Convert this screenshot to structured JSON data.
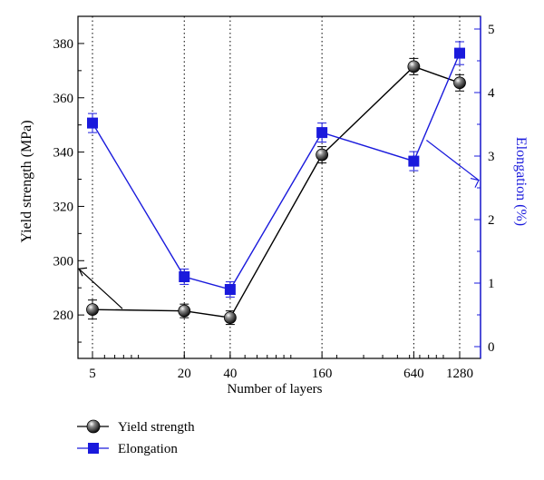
{
  "chart_data": {
    "type": "line",
    "x_scale": "log",
    "categories": [
      "5",
      "20",
      "40",
      "160",
      "640",
      "1280"
    ],
    "x": [
      5,
      20,
      40,
      160,
      640,
      1280
    ],
    "xlabel": "Number of layers",
    "ylabel_left": "Yield strength (MPa)",
    "ylabel_right": "Elongation (%)",
    "ylim_left": [
      264,
      390
    ],
    "yticks_left": [
      "280",
      "300",
      "320",
      "340",
      "360",
      "380"
    ],
    "ylim_right": [
      0,
      5
    ],
    "yticks_right": [
      "0",
      "1",
      "2",
      "3",
      "4",
      "5"
    ],
    "grid": "vertical dotted lines at each x value",
    "legend_position": "bottom-left, below plot",
    "series": [
      {
        "name": "Yield strength",
        "axis": "left",
        "color": "#000000",
        "marker": "sphere",
        "values": [
          282,
          281.5,
          279,
          339,
          371.5,
          365.5
        ],
        "errors": [
          3.5,
          2.5,
          2.5,
          3,
          3,
          3
        ]
      },
      {
        "name": "Elongation",
        "axis": "right",
        "color": "#1a1adc",
        "marker": "square",
        "values": [
          3.52,
          1.1,
          0.9,
          3.37,
          2.92,
          4.62
        ],
        "errors": [
          0.15,
          0.12,
          0.12,
          0.15,
          0.15,
          0.18
        ]
      }
    ]
  }
}
